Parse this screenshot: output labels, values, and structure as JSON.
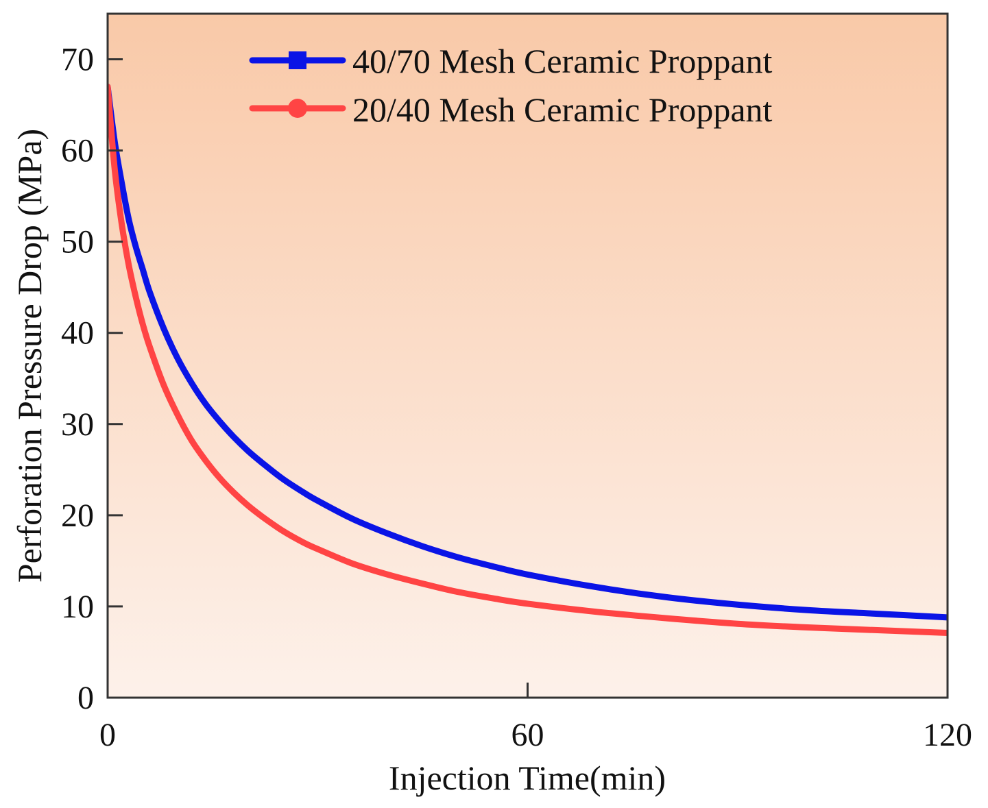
{
  "chart_data": {
    "type": "line",
    "title": "",
    "xlabel": "Injection Time(min)",
    "ylabel": "Perforation Pressure Drop (MPa)",
    "xlim": [
      0,
      120
    ],
    "ylim": [
      0,
      75
    ],
    "x_ticks": [
      0,
      60,
      120
    ],
    "y_ticks": [
      0,
      10,
      20,
      30,
      40,
      50,
      60,
      70
    ],
    "grid": false,
    "legend_position": "top-right",
    "colors": {
      "background_top": "#f9c9a8",
      "background_bottom": "#fdf1ea",
      "axis": "#333333"
    },
    "series": [
      {
        "name": "40/70 Mesh Ceramic Proppant",
        "color": "#0a14e6",
        "marker": "square",
        "x": [
          0,
          1,
          2,
          3,
          4,
          5,
          6,
          8,
          10,
          12,
          14,
          16,
          18,
          20,
          22,
          25,
          28,
          30,
          35,
          40,
          45,
          50,
          55,
          60,
          70,
          80,
          90,
          100,
          110,
          120
        ],
        "values": [
          67,
          61,
          56.5,
          52.5,
          49.5,
          47,
          44.5,
          40.5,
          37.2,
          34.5,
          32.2,
          30.3,
          28.6,
          27.1,
          25.8,
          24.0,
          22.5,
          21.6,
          19.6,
          18.0,
          16.6,
          15.4,
          14.4,
          13.5,
          12.1,
          11.0,
          10.2,
          9.6,
          9.2,
          8.8
        ]
      },
      {
        "name": "20/40 Mesh Ceramic Proppant",
        "color": "#ff4444",
        "marker": "circle",
        "x": [
          0,
          1,
          2,
          3,
          4,
          5,
          6,
          8,
          10,
          12,
          14,
          16,
          18,
          20,
          22,
          25,
          28,
          30,
          35,
          40,
          45,
          50,
          55,
          60,
          70,
          80,
          90,
          100,
          110,
          120
        ],
        "values": [
          67,
          58,
          52,
          47.5,
          44,
          41,
          38.5,
          34.3,
          31.0,
          28.2,
          26.0,
          24.1,
          22.5,
          21.1,
          19.9,
          18.3,
          17.0,
          16.3,
          14.7,
          13.5,
          12.5,
          11.6,
          10.9,
          10.3,
          9.4,
          8.7,
          8.1,
          7.7,
          7.4,
          7.1
        ]
      }
    ]
  }
}
